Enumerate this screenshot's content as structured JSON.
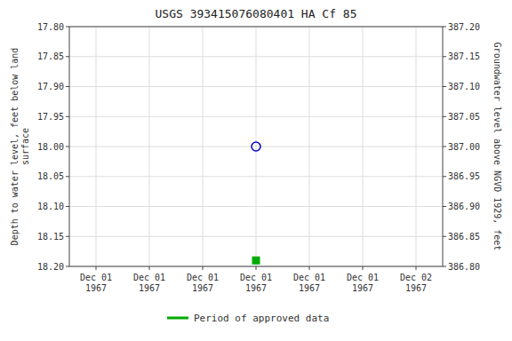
{
  "chart_data": {
    "type": "scatter",
    "title": "USGS 393415076080401 HA Cf  85",
    "y_label": "Depth to water level, feet below land\nsurface",
    "y2_label": "Groundwater level above NGVD 1929, feet",
    "categories": [
      "Dec 01\n1967",
      "Dec 01\n1967",
      "Dec 01\n1967",
      "Dec 01\n1967",
      "Dec 01\n1967",
      "Dec 01\n1967",
      "Dec 02\n1967"
    ],
    "series": [
      {
        "color": "#0000cc",
        "marker": "circle",
        "values": [
          null,
          null,
          null,
          18.0,
          null,
          null,
          null
        ]
      },
      {
        "name": "Period of approved data",
        "color": "#00aa00",
        "marker": "square",
        "values": [
          null,
          null,
          null,
          18.19,
          null,
          null,
          null
        ]
      }
    ],
    "ylim": [
      18.2,
      17.8
    ],
    "yticks": [
      {
        "value": 17.8,
        "label": "17.80"
      },
      {
        "value": 17.85,
        "label": "17.85"
      },
      {
        "value": 17.9,
        "label": "17.90"
      },
      {
        "value": 17.95,
        "label": "17.95"
      },
      {
        "value": 18.0,
        "label": "18.00"
      },
      {
        "value": 18.05,
        "label": "18.05"
      },
      {
        "value": 18.1,
        "label": "18.10"
      },
      {
        "value": 18.15,
        "label": "18.15"
      },
      {
        "value": 18.2,
        "label": "18.20"
      }
    ],
    "y2lim": [
      386.8,
      387.2
    ],
    "y2ticks": [
      {
        "value": 386.8,
        "label": "386.80"
      },
      {
        "value": 386.85,
        "label": "386.85"
      },
      {
        "value": 386.9,
        "label": "386.90"
      },
      {
        "value": 386.95,
        "label": "386.95"
      },
      {
        "value": 387.0,
        "label": "387.00"
      },
      {
        "value": 387.05,
        "label": "387.05"
      },
      {
        "value": 387.1,
        "label": "387.10"
      },
      {
        "value": 387.15,
        "label": "387.15"
      },
      {
        "value": 387.2,
        "label": "387.20"
      }
    ],
    "grid": true,
    "legend": "bottom"
  }
}
